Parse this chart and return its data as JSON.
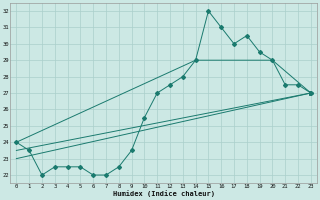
{
  "xlabel": "Humidex (Indice chaleur)",
  "background_color": "#cce8e4",
  "grid_color": "#aacfcb",
  "line_color": "#1a7a6e",
  "xlim": [
    -0.5,
    23.5
  ],
  "ylim": [
    21.5,
    32.5
  ],
  "xticks": [
    0,
    1,
    2,
    3,
    4,
    5,
    6,
    7,
    8,
    9,
    10,
    11,
    12,
    13,
    14,
    15,
    16,
    17,
    18,
    19,
    20,
    21,
    22,
    23
  ],
  "yticks": [
    22,
    23,
    24,
    25,
    26,
    27,
    28,
    29,
    30,
    31,
    32
  ],
  "main_x": [
    0,
    1,
    2,
    3,
    4,
    5,
    6,
    7,
    8,
    9,
    10,
    11,
    12,
    13,
    14,
    15,
    16,
    17,
    18,
    19,
    20,
    21,
    22,
    23
  ],
  "main_y": [
    24.0,
    23.5,
    22.0,
    22.5,
    22.5,
    22.5,
    22.0,
    22.0,
    22.5,
    23.5,
    25.5,
    27.0,
    27.5,
    28.0,
    29.0,
    32.0,
    31.0,
    30.0,
    30.5,
    29.5,
    29.0,
    27.5,
    27.5,
    27.0
  ],
  "trend1_x": [
    0,
    23
  ],
  "trend1_y": [
    23.0,
    27.0
  ],
  "trend2_x": [
    0,
    23
  ],
  "trend2_y": [
    23.5,
    27.0
  ],
  "trend3_x": [
    0,
    14,
    20,
    23
  ],
  "trend3_y": [
    24.0,
    29.0,
    29.0,
    27.0
  ]
}
